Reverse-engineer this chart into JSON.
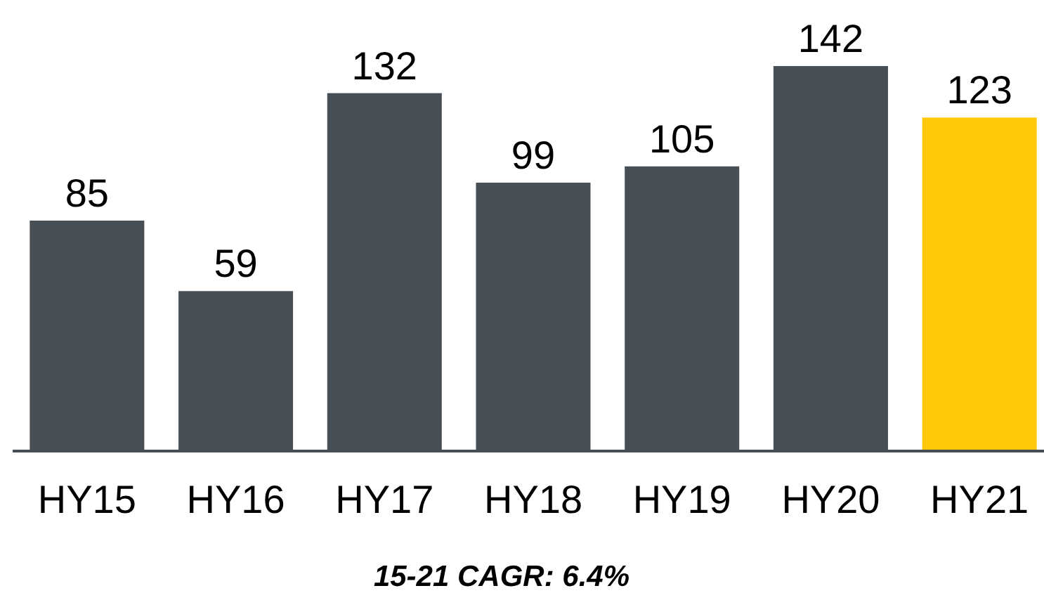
{
  "chart_data": {
    "type": "bar",
    "categories": [
      "HY15",
      "HY16",
      "HY17",
      "HY18",
      "HY19",
      "HY20",
      "HY21"
    ],
    "values": [
      85,
      59,
      132,
      99,
      105,
      142,
      123
    ],
    "colors": [
      "#474e54",
      "#474e54",
      "#474e54",
      "#474e54",
      "#474e54",
      "#474e54",
      "#ffc90a"
    ],
    "data_labels": true,
    "annotations": [
      "15-21 CAGR: 6.4%"
    ]
  }
}
